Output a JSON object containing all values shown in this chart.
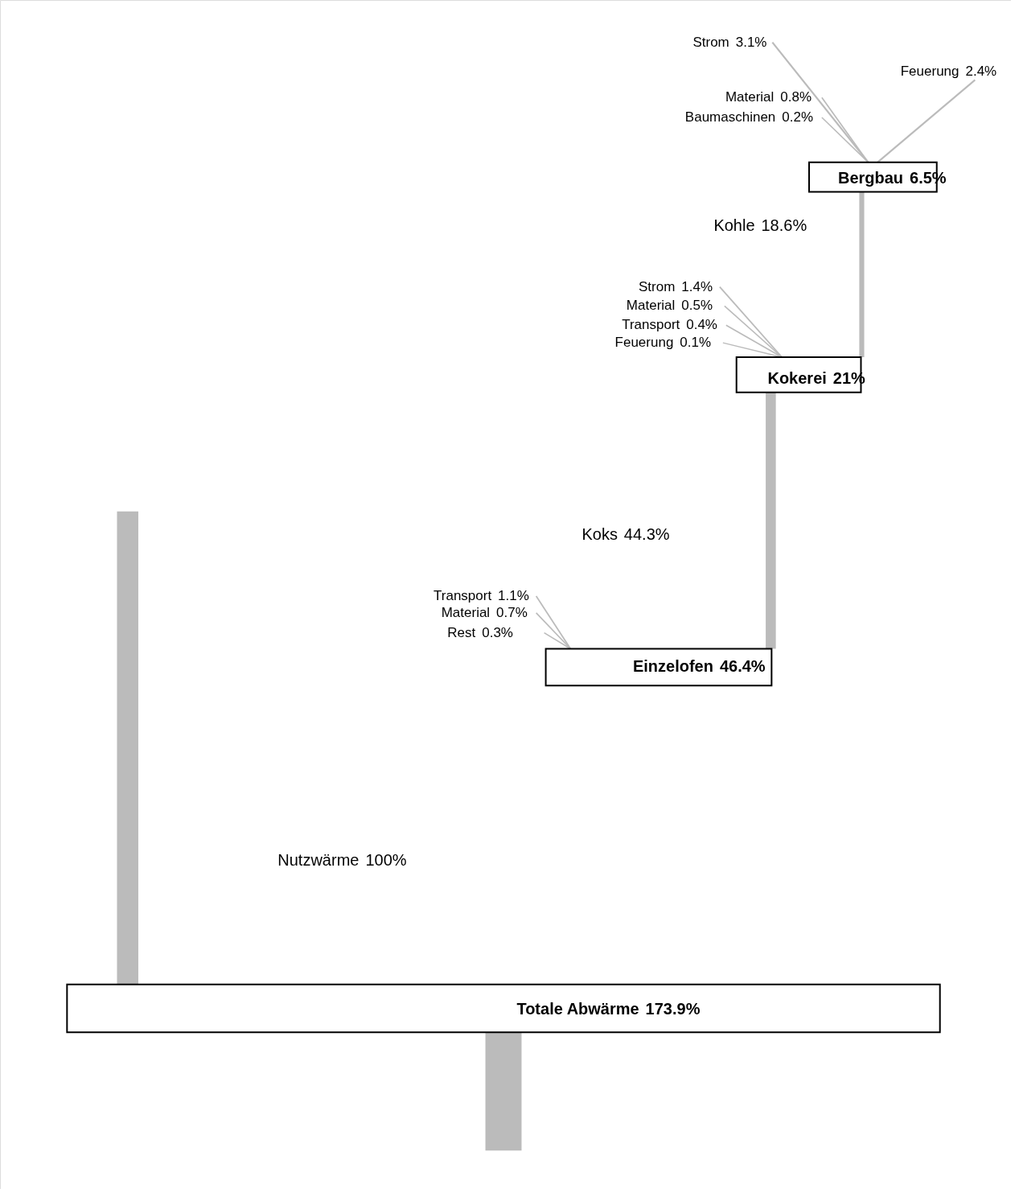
{
  "chart_data": {
    "type": "other",
    "categories": [
      "Nutzwärme",
      "Einzelofen",
      "Koks",
      "Transport",
      "Material",
      "Rest",
      "Kokerei",
      "Kohle",
      "Strom",
      "Material",
      "Transport",
      "Feuerung",
      "Bergbau",
      "Strom",
      "Material",
      "Baumaschinen",
      "Feuerung",
      "Totale Abwärme"
    ],
    "values": [
      100,
      46.4,
      44.3,
      1.1,
      0.7,
      0.3,
      21,
      18.6,
      1.4,
      0.5,
      0.4,
      0.1,
      6.5,
      3.1,
      0.8,
      0.2,
      2.4,
      173.9
    ],
    "value_labels": [
      "100%",
      "46.4%",
      "44.3%",
      "1.1%",
      "0.7%",
      "0.3%",
      "21%",
      "18.6%",
      "1.4%",
      "0.5%",
      "0.4%",
      "0.1%",
      "6.5%",
      "3.1%",
      "0.8%",
      "0.2%",
      "2.4%",
      "173.9%"
    ]
  }
}
